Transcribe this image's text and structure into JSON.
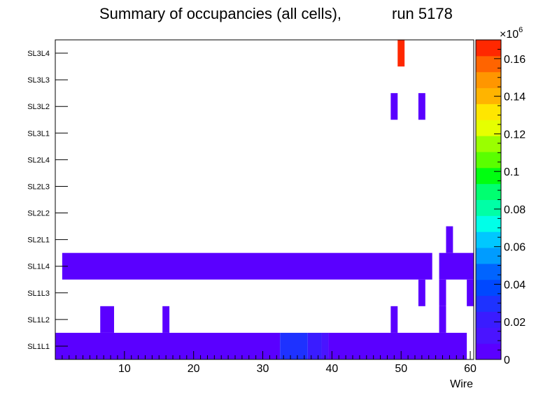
{
  "chart_data": {
    "type": "heatmap",
    "title": "Summary of occupancies (all cells),",
    "run_label": "run 5178",
    "xlabel": "Wire",
    "ylabel": "",
    "xlim": [
      0,
      60.5
    ],
    "x_ticks": [
      10,
      20,
      30,
      40,
      50,
      60
    ],
    "y_categories": [
      "SL1L1",
      "SL1L2",
      "SL1L3",
      "SL1L4",
      "SL2L1",
      "SL2L2",
      "SL2L3",
      "SL2L4",
      "SL3L1",
      "SL3L2",
      "SL3L3",
      "SL3L4"
    ],
    "colorbar": {
      "min": 0,
      "max": 0.17,
      "exponent_label": "×10",
      "exponent_power": "6",
      "tick_values": [
        0,
        0.02,
        0.04,
        0.06,
        0.08,
        0.1,
        0.12,
        0.14,
        0.16
      ],
      "tick_labels": [
        "0",
        "0.02",
        "0.04",
        "0.06",
        "0.08",
        "0.1",
        "0.12",
        "0.14",
        "0.16"
      ],
      "colors": [
        "#5a00ff",
        "#4a14ff",
        "#3a1cff",
        "#1e32ff",
        "#0048ff",
        "#0064ff",
        "#009cff",
        "#00c8ff",
        "#00ffe8",
        "#00ffa6",
        "#00ff70",
        "#00ff10",
        "#5aff00",
        "#9aff00",
        "#e6ff00",
        "#ffe600",
        "#ffb400",
        "#ff9600",
        "#ff6400",
        "#ff2800"
      ]
    },
    "cells": [
      {
        "layer": "SL1L1",
        "x0": 0,
        "x1": 32.5,
        "value": 0.008
      },
      {
        "layer": "SL1L1",
        "x0": 32.5,
        "x1": 36.5,
        "value": 0.032
      },
      {
        "layer": "SL1L1",
        "x0": 36.5,
        "x1": 38.5,
        "value": 0.024
      },
      {
        "layer": "SL1L1",
        "x0": 38.5,
        "x1": 39.5,
        "value": 0.016
      },
      {
        "layer": "SL1L1",
        "x0": 39.5,
        "x1": 59.5,
        "value": 0.008
      },
      {
        "layer": "SL1L2",
        "x0": 6.5,
        "x1": 8.5,
        "value": 0.006
      },
      {
        "layer": "SL1L2",
        "x0": 15.5,
        "x1": 16.5,
        "value": 0.006
      },
      {
        "layer": "SL1L2",
        "x0": 48.5,
        "x1": 49.5,
        "value": 0.006
      },
      {
        "layer": "SL1L2",
        "x0": 55.5,
        "x1": 56.5,
        "value": 0.006
      },
      {
        "layer": "SL1L3",
        "x0": 52.5,
        "x1": 53.5,
        "value": 0.006
      },
      {
        "layer": "SL1L3",
        "x0": 55.5,
        "x1": 56.5,
        "value": 0.006
      },
      {
        "layer": "SL1L3",
        "x0": 59.5,
        "x1": 60.5,
        "value": 0.006
      },
      {
        "layer": "SL1L4",
        "x0": 1,
        "x1": 54.5,
        "value": 0.007
      },
      {
        "layer": "SL1L4",
        "x0": 55.5,
        "x1": 60.5,
        "value": 0.007
      },
      {
        "layer": "SL2L1",
        "x0": 56.5,
        "x1": 57.5,
        "value": 0.006
      },
      {
        "layer": "SL3L2",
        "x0": 48.5,
        "x1": 49.5,
        "value": 0.006
      },
      {
        "layer": "SL3L2",
        "x0": 52.5,
        "x1": 53.5,
        "value": 0.006
      },
      {
        "layer": "SL3L4",
        "x0": 49.5,
        "x1": 50.5,
        "value": 0.165
      }
    ]
  }
}
